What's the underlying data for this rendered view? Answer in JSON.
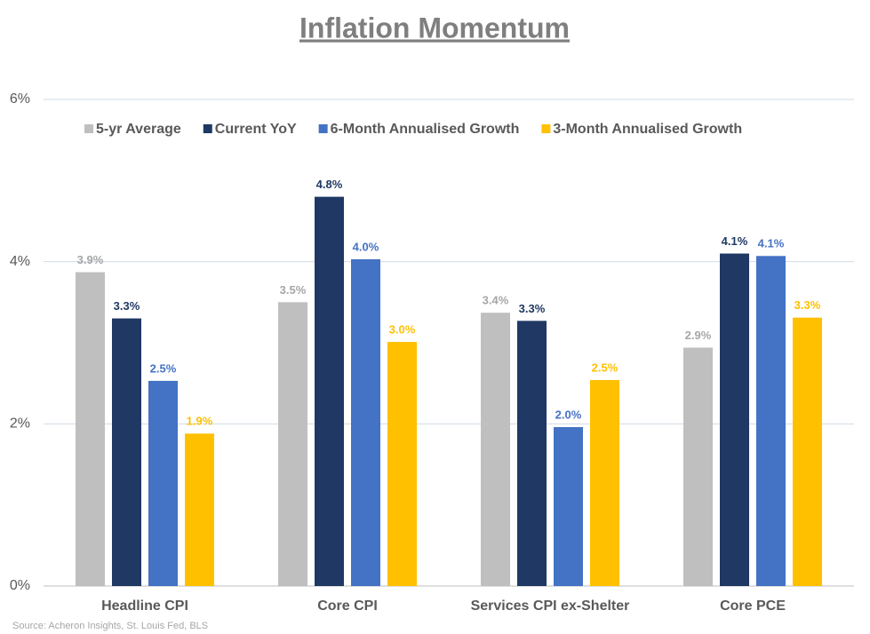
{
  "chart_data": {
    "type": "bar",
    "title": "Inflation Momentum",
    "source": "Source: Acheron Insights, St. Louis Fed, BLS",
    "categories": [
      "Headline CPI",
      "Core CPI",
      "Services CPI ex-Shelter",
      "Core PCE"
    ],
    "series": [
      {
        "name": "5-yr Average",
        "color": "#bfbfbf",
        "values": [
          3.87,
          3.5,
          3.37,
          2.94
        ],
        "value_labels": [
          "3.9%",
          "3.5%",
          "3.4%",
          "2.9%"
        ]
      },
      {
        "name": "Current YoY",
        "color": "#1f3864",
        "values": [
          3.3,
          4.8,
          3.27,
          4.1
        ],
        "value_labels": [
          "3.3%",
          "4.8%",
          "3.3%",
          "4.1%"
        ]
      },
      {
        "name": "6-Month Annualised Growth",
        "color": "#4472c4",
        "values": [
          2.53,
          4.03,
          1.96,
          4.07
        ],
        "value_labels": [
          "2.5%",
          "4.0%",
          "2.0%",
          "4.1%"
        ]
      },
      {
        "name": "3-Month Annualised Growth",
        "color": "#ffc000",
        "values": [
          1.88,
          3.01,
          2.54,
          3.31
        ],
        "value_labels": [
          "1.9%",
          "3.0%",
          "2.5%",
          "3.3%"
        ]
      }
    ],
    "ylim": [
      0,
      6
    ],
    "yticks": [
      {
        "value": 0,
        "label": "0%"
      },
      {
        "value": 2,
        "label": "2%"
      },
      {
        "value": 4,
        "label": "4%"
      },
      {
        "value": 6,
        "label": "6%"
      }
    ],
    "grid": true,
    "legend": "top"
  }
}
